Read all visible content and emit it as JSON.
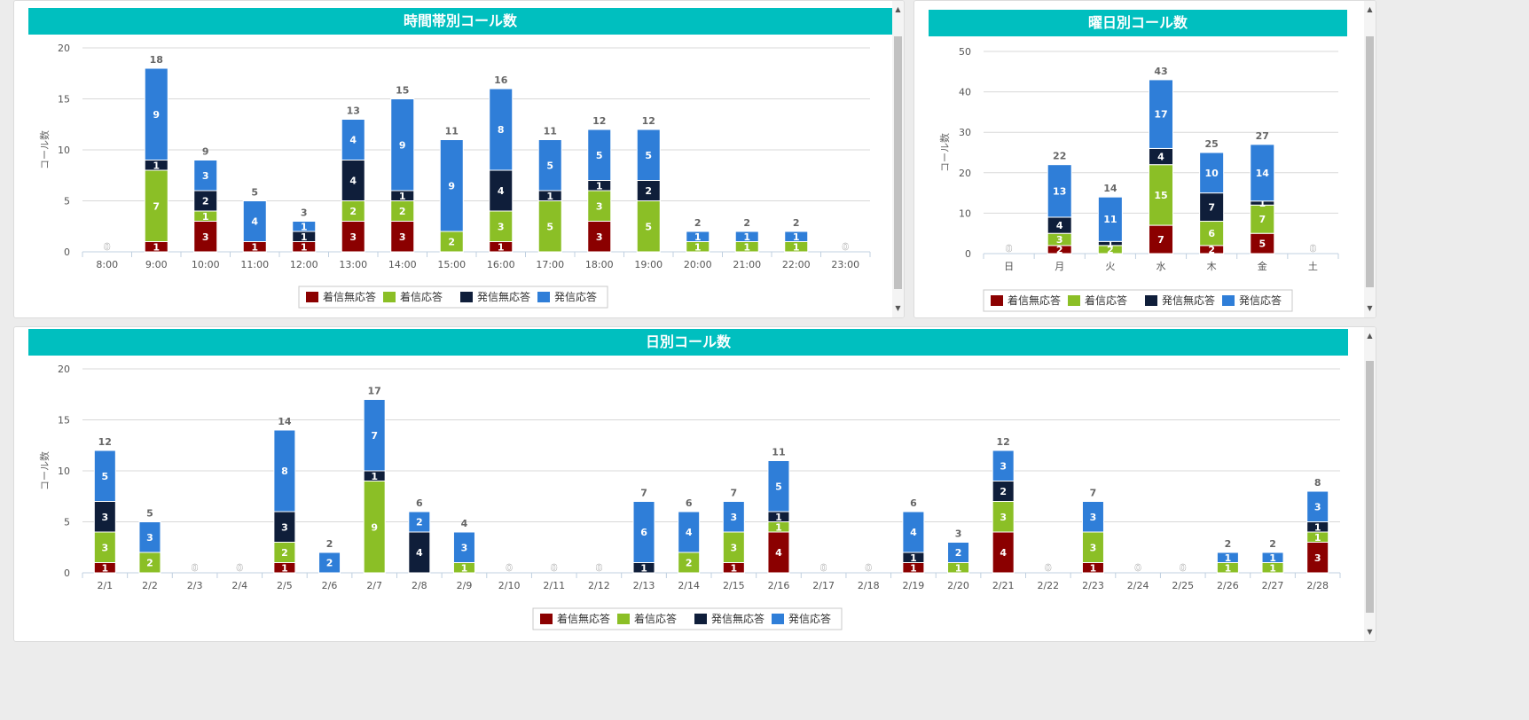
{
  "legend_labels": [
    "着信無応答",
    "着信応答",
    "発信無応答",
    "発信応答"
  ],
  "colors": {
    "miss_in": "#8b0000",
    "ans_in": "#8bbf26",
    "miss_out": "#0f1e3a",
    "ans_out": "#2f7ed8",
    "title_bar": "#00bfbf"
  },
  "panels": {
    "hourly": {
      "title": "時間帯別コール数"
    },
    "weekday": {
      "title": "曜日別コール数"
    },
    "daily": {
      "title": "日別コール数"
    }
  },
  "chart_data": [
    {
      "type": "bar",
      "stacked": true,
      "title": "時間帯別コール数",
      "ylabel": "コール数",
      "ylim": [
        0,
        20
      ],
      "yticks": [
        0,
        5,
        10,
        15,
        20
      ],
      "categories": [
        "8:00",
        "9:00",
        "10:00",
        "11:00",
        "12:00",
        "13:00",
        "14:00",
        "15:00",
        "16:00",
        "17:00",
        "18:00",
        "19:00",
        "20:00",
        "21:00",
        "22:00",
        "23:00"
      ],
      "series": [
        {
          "name": "着信無応答",
          "values": [
            0,
            1,
            3,
            1,
            1,
            3,
            3,
            0,
            1,
            0,
            3,
            0,
            0,
            0,
            0,
            0
          ]
        },
        {
          "name": "着信応答",
          "values": [
            0,
            7,
            1,
            0,
            0,
            2,
            2,
            2,
            3,
            5,
            3,
            5,
            1,
            1,
            1,
            0
          ]
        },
        {
          "name": "発信無応答",
          "values": [
            0,
            1,
            2,
            0,
            1,
            4,
            1,
            0,
            4,
            1,
            1,
            2,
            0,
            0,
            0,
            0
          ]
        },
        {
          "name": "発信応答",
          "values": [
            0,
            9,
            3,
            4,
            1,
            4,
            9,
            9,
            8,
            5,
            5,
            5,
            1,
            1,
            1,
            0
          ]
        }
      ],
      "totals": [
        0,
        18,
        9,
        5,
        3,
        13,
        15,
        11,
        16,
        11,
        12,
        12,
        2,
        2,
        2,
        0
      ],
      "legend": "bottom-center",
      "grid": true
    },
    {
      "type": "bar",
      "stacked": true,
      "title": "曜日別コール数",
      "ylabel": "コール数",
      "ylim": [
        0,
        50
      ],
      "yticks": [
        0,
        10,
        20,
        30,
        40,
        50
      ],
      "categories": [
        "日",
        "月",
        "火",
        "水",
        "木",
        "金",
        "土"
      ],
      "series": [
        {
          "name": "着信無応答",
          "values": [
            0,
            2,
            0,
            7,
            2,
            5,
            0
          ]
        },
        {
          "name": "着信応答",
          "values": [
            0,
            3,
            2,
            15,
            6,
            7,
            0
          ]
        },
        {
          "name": "発信無応答",
          "values": [
            0,
            4,
            1,
            4,
            7,
            1,
            0
          ]
        },
        {
          "name": "発信応答",
          "values": [
            0,
            13,
            11,
            17,
            10,
            14,
            0
          ]
        }
      ],
      "totals": [
        0,
        22,
        14,
        43,
        25,
        27,
        0
      ],
      "legend": "bottom-center",
      "grid": true
    },
    {
      "type": "bar",
      "stacked": true,
      "title": "日別コール数",
      "ylabel": "コール数",
      "ylim": [
        0,
        20
      ],
      "yticks": [
        0,
        5,
        10,
        15,
        20
      ],
      "categories": [
        "2/1",
        "2/2",
        "2/3",
        "2/4",
        "2/5",
        "2/6",
        "2/7",
        "2/8",
        "2/9",
        "2/10",
        "2/11",
        "2/12",
        "2/13",
        "2/14",
        "2/15",
        "2/16",
        "2/17",
        "2/18",
        "2/19",
        "2/20",
        "2/21",
        "2/22",
        "2/23",
        "2/24",
        "2/25",
        "2/26",
        "2/27",
        "2/28"
      ],
      "series": [
        {
          "name": "着信無応答",
          "values": [
            1,
            0,
            0,
            0,
            1,
            0,
            0,
            0,
            0,
            0,
            0,
            0,
            0,
            0,
            1,
            4,
            0,
            0,
            1,
            0,
            4,
            0,
            1,
            0,
            0,
            0,
            0,
            3
          ]
        },
        {
          "name": "着信応答",
          "values": [
            3,
            2,
            0,
            0,
            2,
            0,
            9,
            0,
            1,
            0,
            0,
            0,
            0,
            2,
            3,
            1,
            0,
            0,
            0,
            1,
            3,
            0,
            3,
            0,
            0,
            1,
            1,
            1
          ]
        },
        {
          "name": "発信無応答",
          "values": [
            3,
            0,
            0,
            0,
            3,
            0,
            1,
            4,
            0,
            0,
            0,
            0,
            1,
            0,
            0,
            1,
            0,
            0,
            1,
            0,
            2,
            0,
            0,
            0,
            0,
            0,
            0,
            1
          ]
        },
        {
          "name": "発信応答",
          "values": [
            5,
            3,
            0,
            0,
            8,
            2,
            7,
            2,
            3,
            0,
            0,
            0,
            6,
            4,
            3,
            5,
            0,
            0,
            4,
            2,
            3,
            0,
            3,
            0,
            0,
            1,
            1,
            3
          ]
        }
      ],
      "totals": [
        12,
        5,
        0,
        0,
        14,
        2,
        17,
        6,
        4,
        0,
        0,
        0,
        7,
        6,
        7,
        11,
        0,
        0,
        6,
        3,
        12,
        0,
        7,
        0,
        0,
        2,
        2,
        8
      ],
      "legend": "bottom-center",
      "grid": true
    }
  ]
}
